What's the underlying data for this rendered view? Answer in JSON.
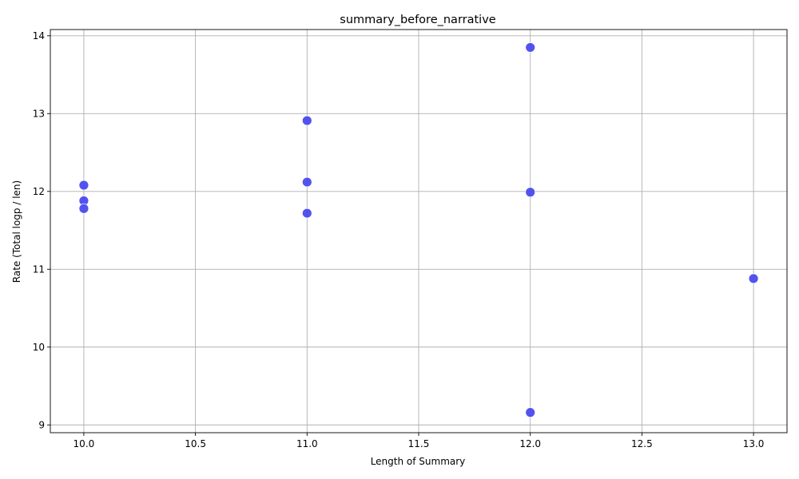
{
  "chart_data": {
    "type": "scatter",
    "title": "summary_before_narrative",
    "xlabel": "Length of Summary",
    "ylabel": "Rate (Total logp / len)",
    "xlim": [
      9.85,
      13.15
    ],
    "ylim": [
      8.9,
      14.08
    ],
    "xticks": [
      10.0,
      10.5,
      11.0,
      11.5,
      12.0,
      12.5,
      13.0
    ],
    "xtick_labels": [
      "10.0",
      "10.5",
      "11.0",
      "11.5",
      "12.0",
      "12.5",
      "13.0"
    ],
    "yticks": [
      9,
      10,
      11,
      12,
      13,
      14
    ],
    "ytick_labels": [
      "9",
      "10",
      "11",
      "12",
      "13",
      "14"
    ],
    "grid": true,
    "point_color": "#4444ee",
    "points": [
      {
        "x": 10,
        "y": 12.08
      },
      {
        "x": 10,
        "y": 11.88
      },
      {
        "x": 10,
        "y": 11.78
      },
      {
        "x": 11,
        "y": 12.91
      },
      {
        "x": 11,
        "y": 12.12
      },
      {
        "x": 11,
        "y": 11.72
      },
      {
        "x": 12,
        "y": 13.85
      },
      {
        "x": 12,
        "y": 11.99
      },
      {
        "x": 12,
        "y": 9.16
      },
      {
        "x": 13,
        "y": 10.88
      }
    ]
  }
}
